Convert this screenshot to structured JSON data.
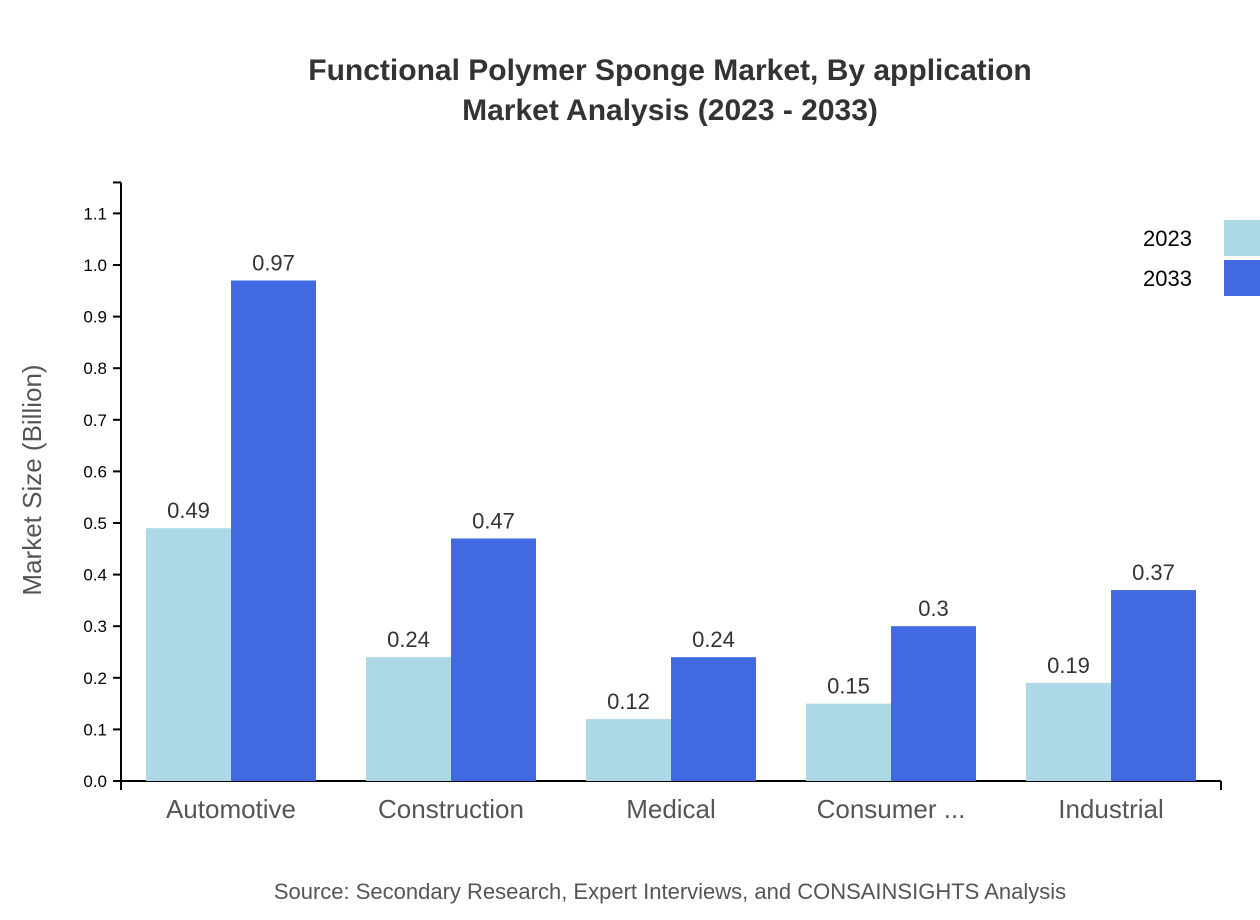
{
  "chart_data": {
    "type": "bar",
    "title": "Functional Polymer Sponge Market, By application",
    "subtitle": "Market Analysis (2023 - 2033)",
    "xlabel": "",
    "ylabel": "Market Size (Billion)",
    "ylim": [
      0,
      1.16
    ],
    "yticks": [
      "0.0",
      "0.1",
      "0.2",
      "0.3",
      "0.4",
      "0.5",
      "0.6",
      "0.7",
      "0.8",
      "0.9",
      "1.0",
      "1.1"
    ],
    "categories": [
      "Automotive",
      "Construction",
      "Medical",
      "Consumer ...",
      "Industrial"
    ],
    "series": [
      {
        "name": "2023",
        "color": "#add8e6",
        "values": [
          0.49,
          0.24,
          0.12,
          0.15,
          0.19
        ],
        "labels": [
          "0.49",
          "0.24",
          "0.12",
          "0.15",
          "0.19"
        ]
      },
      {
        "name": "2033",
        "color": "#4169e1",
        "values": [
          0.97,
          0.47,
          0.24,
          0.3,
          0.37
        ],
        "labels": [
          "0.97",
          "0.47",
          "0.24",
          "0.3",
          "0.37"
        ]
      }
    ],
    "grid": false,
    "legend": "top-right",
    "source": "Source: Secondary Research, Expert Interviews, and CONSAINSIGHTS Analysis"
  }
}
